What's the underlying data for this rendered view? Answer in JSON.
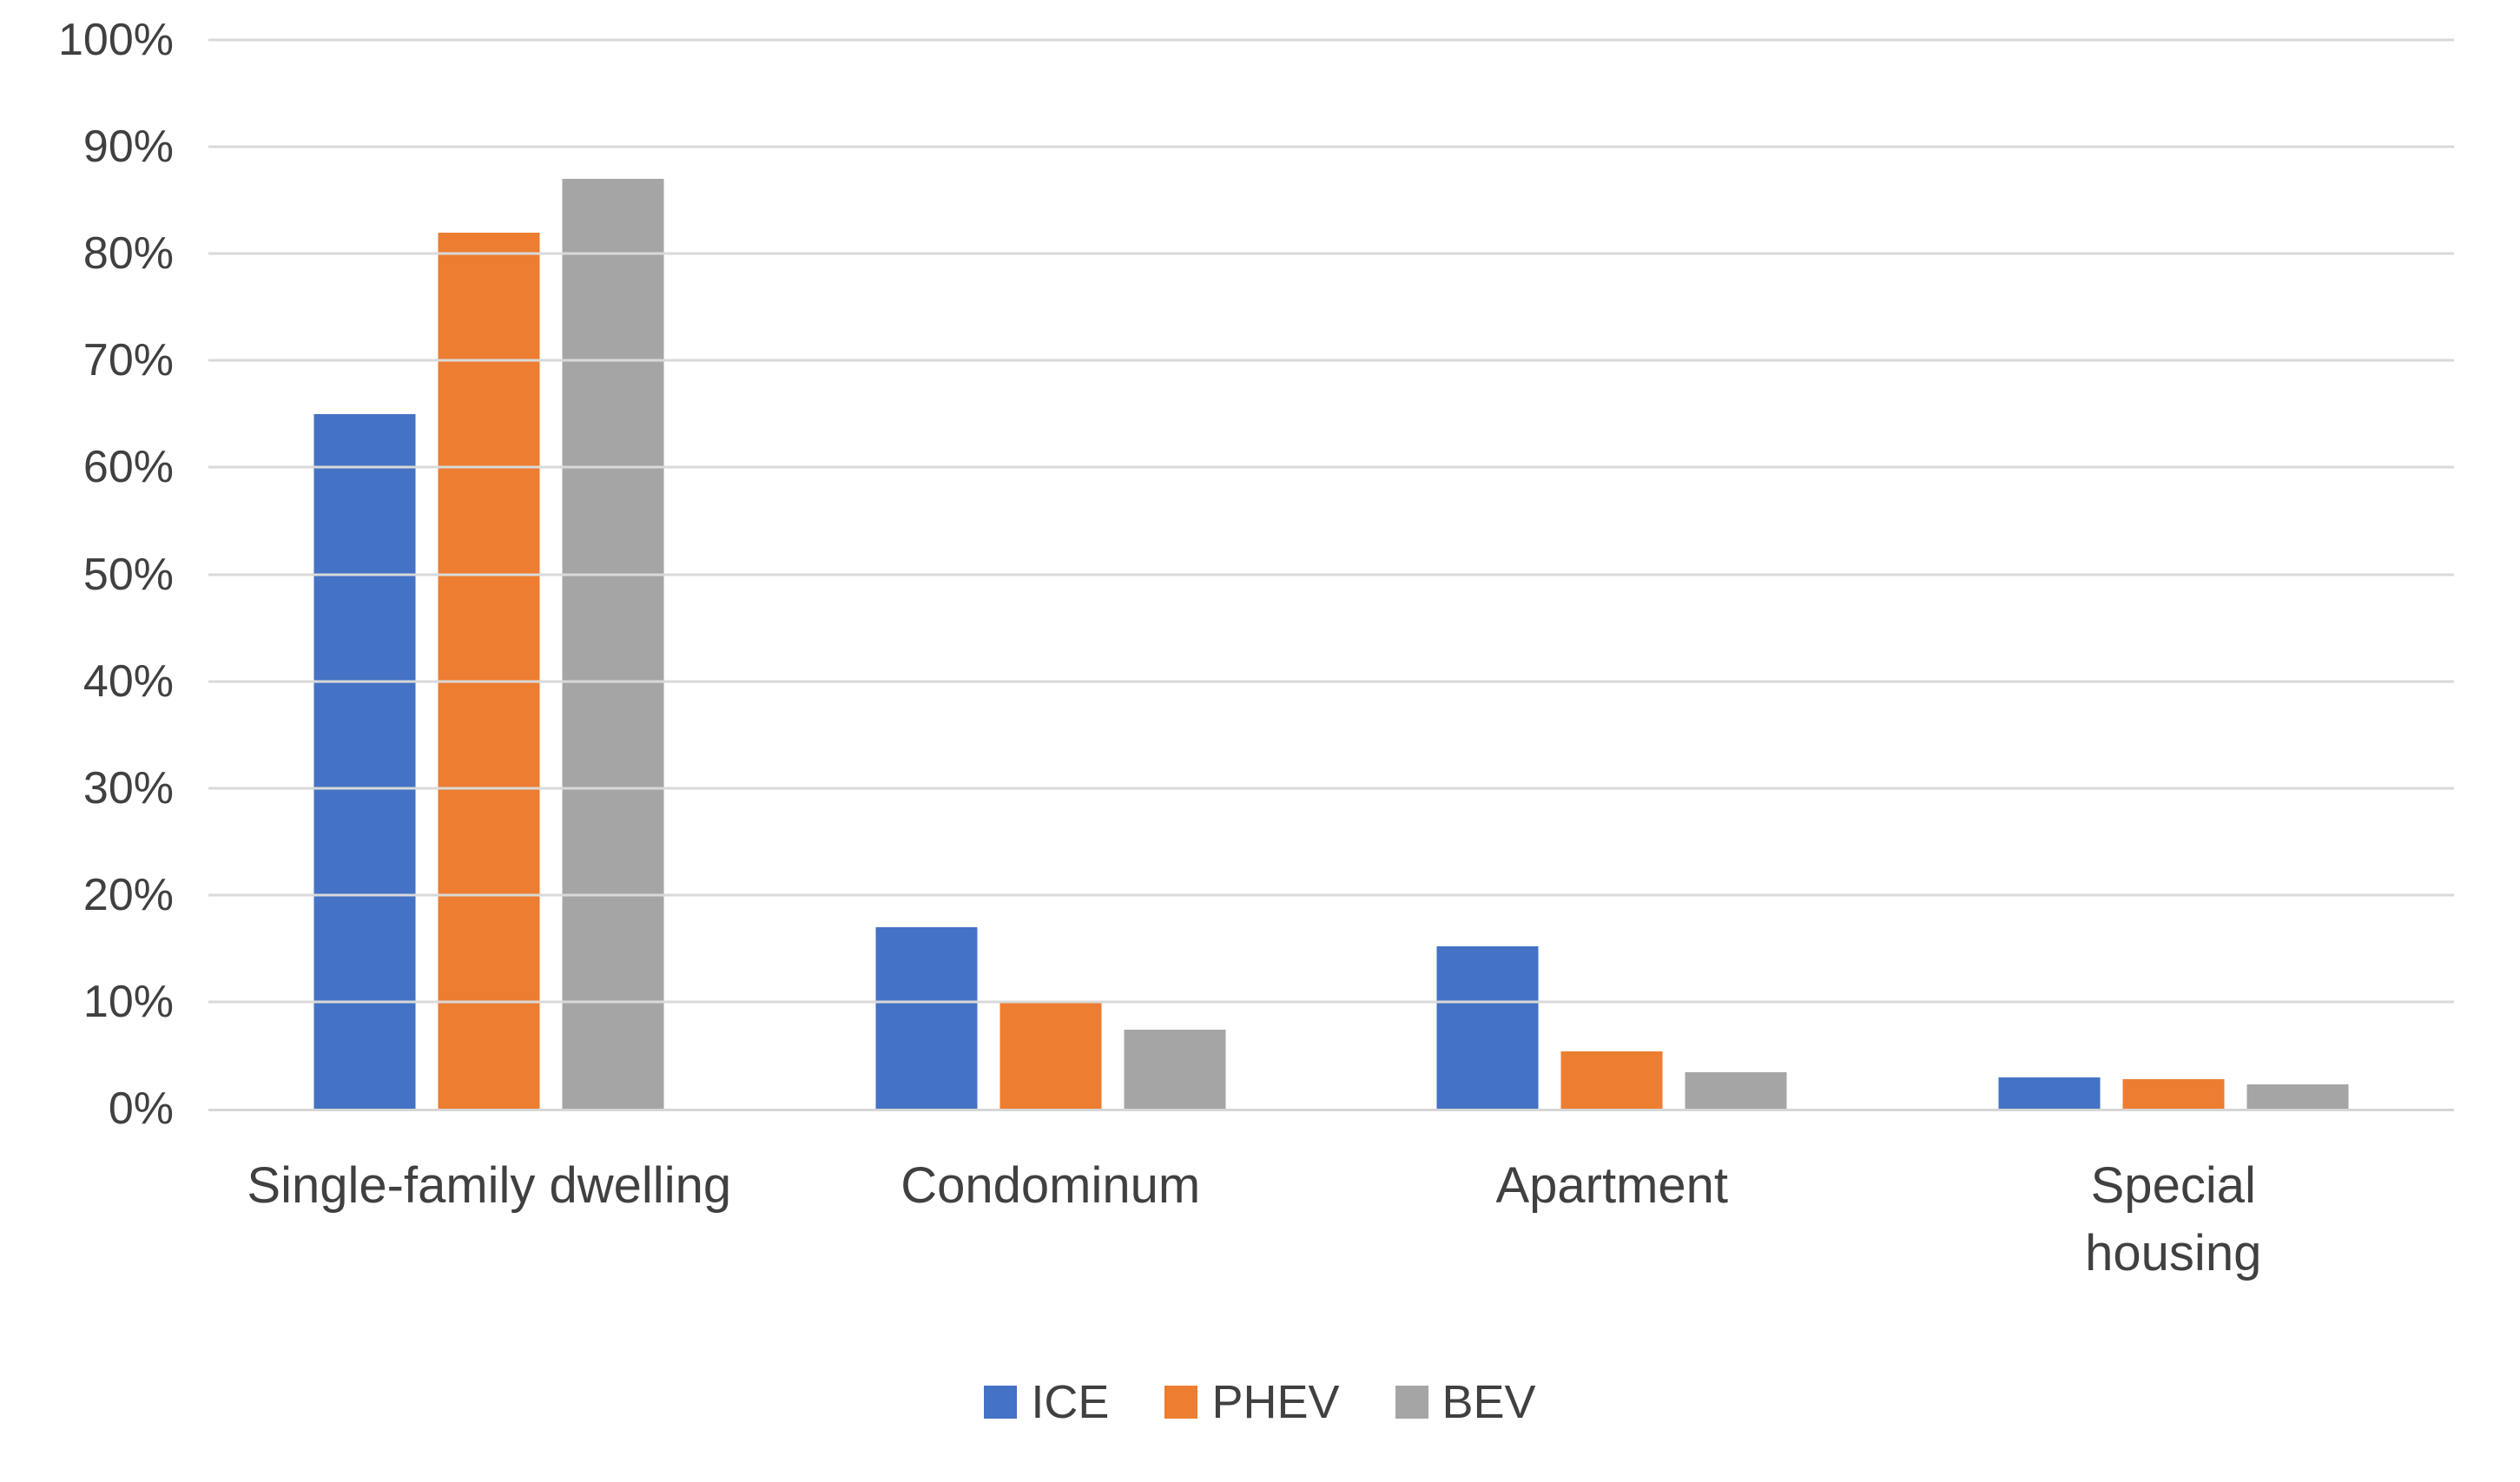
{
  "chart_data": {
    "type": "bar",
    "title": "",
    "xlabel": "",
    "ylabel": "",
    "categories": [
      "Single-family dwelling",
      "Condominum",
      "Apartment",
      "Special housing"
    ],
    "series": [
      {
        "name": "ICE",
        "color": "#4472C4",
        "values": [
          65,
          17,
          15.2,
          2.9
        ]
      },
      {
        "name": "PHEV",
        "color": "#ED7D31",
        "values": [
          82,
          10,
          5.4,
          2.8
        ]
      },
      {
        "name": "BEV",
        "color": "#A5A5A5",
        "values": [
          87,
          7.4,
          3.4,
          2.3
        ]
      }
    ],
    "ylim": [
      0,
      100
    ],
    "ytick_step": 10,
    "ytick_labels": [
      "0%",
      "10%",
      "20%",
      "30%",
      "40%",
      "50%",
      "60%",
      "70%",
      "80%",
      "90%",
      "100%"
    ],
    "grid": true,
    "legend_position": "bottom",
    "gridline_color": "#d9d9d9",
    "axis_text_color": "#404040"
  }
}
